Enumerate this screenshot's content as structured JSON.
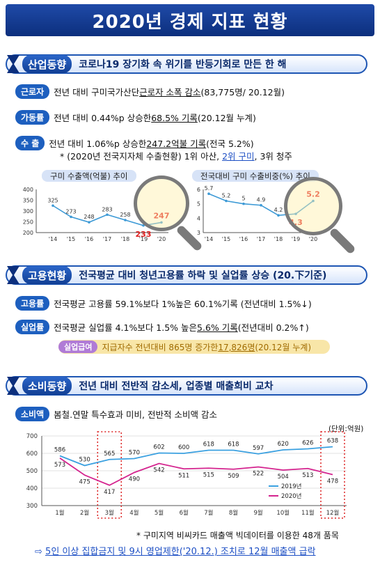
{
  "title": "2020년 경제 지표 현황",
  "sections": {
    "industry": {
      "tag": "산업동향",
      "desc": "코로나19 장기화 속 위기를 반등기회로 만든 한 해",
      "worker": {
        "pill": "근로자",
        "text_a": "전년 대비 구미국가산단 ",
        "text_u": "근로자 소폭 감소",
        "text_b": "(83,775명/ 20.12월)"
      },
      "util": {
        "pill": "가동률",
        "text_a": "전년 대비 0.44%p 상승한 ",
        "text_u": "68.5% 기록",
        "text_b": "(20.12월 누계)"
      },
      "export": {
        "pill": "수   출",
        "text_a": "전년 대비 1.06%p 상승한 ",
        "text_u": "247.2억불 기록",
        "text_b": "(전국 5.2%)",
        "sub_a": "* (2020년 전국지자체 수출현황) 1위 아산, ",
        "sub_u": "2위 구미",
        "sub_b": ", 3위 청주"
      }
    },
    "employment": {
      "tag": "고용현황",
      "desc": "전국평균 대비 청년고용률 하락 및 실업률 상승 (20.下기준)",
      "emp": {
        "pill": "고용률",
        "text": "전국평균 고용률 59.1%보다 1%높은 60.1%기록 (전년대비 1.5%↓)"
      },
      "unemp": {
        "pill": "실업률",
        "text_a": "전국평균 실업률 4.1%보다 1.5% 높은 ",
        "text_u": "5.6% 기록",
        "text_b": "(전년대비 0.2%↑)"
      },
      "benefit": {
        "pill": "실업급여",
        "text_a": "지급자수 전년대비 865명 증가한 ",
        "text_u": "17,826명",
        "text_b": "(20.12월 누계)"
      }
    },
    "consumption": {
      "tag": "소비동향",
      "desc": "전년 대비 전반적 감소세, 업종별 매출희비 교차",
      "spend": {
        "pill": "소비액",
        "text": "봄철.연말 특수효과 미비, 전반적 소비액 감소"
      },
      "unit": "(단위:억원)",
      "footnote": "* 구미지역 비씨카드 매출액 빅데이터를 이용한 48개 품목",
      "arrow": "⇨",
      "conclusion": "5인 이상 집합금지 및 9시 영업제한('20.12.) 조치로 12월 매출액 급락"
    }
  },
  "chart_data": [
    {
      "type": "line",
      "title": "구미 수출액(억불) 추이",
      "categories": [
        "'14",
        "'15",
        "'16",
        "'17",
        "'18",
        "'19",
        "'20"
      ],
      "values": [
        325,
        273,
        248,
        283,
        258,
        233,
        247
      ],
      "ylim": [
        200,
        400
      ],
      "yticks": [
        200,
        250,
        300,
        350,
        400
      ],
      "highlight_from": 5,
      "color": "#3d9ad6",
      "highlight_color": "#e02020"
    },
    {
      "type": "line",
      "title": "전국대비 구미 수출비중(%) 추이",
      "categories": [
        "'14",
        "'15",
        "'16",
        "'17",
        "'18",
        "'19",
        "'20"
      ],
      "values": [
        5.7,
        5.2,
        5,
        4.9,
        4.2,
        4.3,
        5.2
      ],
      "ylim": [
        3,
        6
      ],
      "yticks": [
        3,
        4,
        5,
        6
      ],
      "highlight_from": 5,
      "color": "#3d9ad6",
      "highlight_color": "#e02020"
    },
    {
      "type": "line",
      "categories": [
        "1월",
        "2월",
        "3월",
        "4월",
        "5월",
        "6월",
        "7월",
        "8월",
        "9월",
        "10월",
        "11월",
        "12월"
      ],
      "series": [
        {
          "name": "2019년",
          "values": [
            586,
            530,
            565,
            570,
            602,
            600,
            618,
            618,
            597,
            620,
            626,
            638
          ],
          "color": "#3aa0e0"
        },
        {
          "name": "2020년",
          "values": [
            573,
            475,
            417,
            490,
            542,
            511,
            515,
            509,
            522,
            504,
            513,
            478
          ],
          "color": "#d4238e"
        }
      ],
      "ylim": [
        300,
        700
      ],
      "yticks": [
        300,
        400,
        500,
        600,
        700
      ],
      "highlight_months": [
        "3월",
        "12월"
      ]
    }
  ]
}
